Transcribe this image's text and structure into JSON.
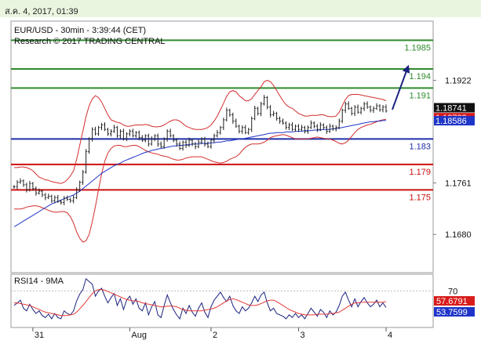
{
  "header": {
    "timestamp": "ส.ค. 4, 2017, 01:39"
  },
  "chart_data": [
    {
      "type": "candlestick",
      "title": "EUR/USD - 30min - 3:39:44 (CET)",
      "subtitle": "Research © 2017 TRADING CENTRAL",
      "ylim": [
        1.162,
        1.2015
      ],
      "y_ticks": [
        {
          "value": 1.1922,
          "label": "1.1922"
        },
        {
          "value": 1.1761,
          "label": "1.1761"
        },
        {
          "value": 1.168,
          "label": "1.1680"
        }
      ],
      "levels": [
        {
          "value": 1.1985,
          "label": "1.1985",
          "color": "#2e8b2e",
          "kind": "resistance"
        },
        {
          "value": 1.194,
          "label": "1.194",
          "color": "#2e8b2e",
          "kind": "resistance"
        },
        {
          "value": 1.191,
          "label": "1.191",
          "color": "#2e8b2e",
          "kind": "resistance"
        },
        {
          "value": 1.183,
          "label": "1.183",
          "color": "#1f2fa8",
          "kind": "pivot"
        },
        {
          "value": 1.179,
          "label": "1.179",
          "color": "#cc1111",
          "kind": "support"
        },
        {
          "value": 1.175,
          "label": "1.175",
          "color": "#cc1111",
          "kind": "support"
        }
      ],
      "price_tags": [
        {
          "value": 1.18741,
          "label": "1.18741",
          "bg": "#111111",
          "fg": "#ffffff"
        },
        {
          "value": 1.18733,
          "label": "1.18733",
          "bg": "#d81b1b",
          "fg": "#ffffff"
        },
        {
          "value": 1.18586,
          "label": "1.18586",
          "bg": "#1f35c8",
          "fg": "#ffffff"
        }
      ],
      "x_labels": [
        {
          "index": 6,
          "label": "31"
        },
        {
          "index": 37,
          "label": "Aug"
        },
        {
          "index": 63,
          "label": "2"
        },
        {
          "index": 91,
          "label": "3"
        },
        {
          "index": 119,
          "label": "4"
        }
      ],
      "close": [
        1.1755,
        1.1762,
        1.1764,
        1.1758,
        1.175,
        1.176,
        1.1752,
        1.1745,
        1.1748,
        1.1742,
        1.1738,
        1.174,
        1.1733,
        1.1738,
        1.1732,
        1.173,
        1.1737,
        1.1735,
        1.1733,
        1.1738,
        1.175,
        1.1762,
        1.1778,
        1.181,
        1.183,
        1.1845,
        1.1838,
        1.1848,
        1.1852,
        1.1845,
        1.1838,
        1.1842,
        1.1848,
        1.1835,
        1.1842,
        1.183,
        1.1838,
        1.1842,
        1.1835,
        1.184,
        1.1832,
        1.1828,
        1.1835,
        1.1822,
        1.183,
        1.1835,
        1.1822,
        1.1818,
        1.183,
        1.1842,
        1.1835,
        1.1828,
        1.1822,
        1.1815,
        1.1825,
        1.182,
        1.1828,
        1.1822,
        1.1818,
        1.1825,
        1.183,
        1.1822,
        1.1818,
        1.1828,
        1.1835,
        1.184,
        1.1848,
        1.186,
        1.1875,
        1.1868,
        1.1858,
        1.185,
        1.1842,
        1.1848,
        1.184,
        1.1845,
        1.1862,
        1.1878,
        1.187,
        1.1885,
        1.1895,
        1.188,
        1.1868,
        1.187,
        1.1862,
        1.1858,
        1.1855,
        1.1848,
        1.1852,
        1.1845,
        1.185,
        1.1845,
        1.1848,
        1.1842,
        1.1848,
        1.1855,
        1.185,
        1.1845,
        1.1852,
        1.1848,
        1.1842,
        1.185,
        1.1846,
        1.1848,
        1.1858,
        1.1875,
        1.1885,
        1.1878,
        1.187,
        1.188,
        1.1872,
        1.1878,
        1.1885,
        1.188,
        1.1875,
        1.1878,
        1.1882,
        1.1876,
        1.188,
        1.1874
      ],
      "upper_band": [
        1.1785,
        1.1785,
        1.1786,
        1.1786,
        1.1785,
        1.1783,
        1.178,
        1.1775,
        1.177,
        1.1768,
        1.1766,
        1.1765,
        1.1763,
        1.1762,
        1.1761,
        1.176,
        1.1762,
        1.1766,
        1.1772,
        1.178,
        1.1798,
        1.182,
        1.1842,
        1.1865,
        1.1882,
        1.1893,
        1.1898,
        1.1895,
        1.1888,
        1.1878,
        1.1868,
        1.186,
        1.1858,
        1.1856,
        1.1855,
        1.1852,
        1.185,
        1.185,
        1.1851,
        1.1852,
        1.1852,
        1.1852,
        1.1853,
        1.1852,
        1.185,
        1.1849,
        1.1849,
        1.185,
        1.1852,
        1.1855,
        1.1858,
        1.186,
        1.186,
        1.1858,
        1.1854,
        1.185,
        1.1848,
        1.1846,
        1.1845,
        1.1845,
        1.1845,
        1.1846,
        1.1848,
        1.1852,
        1.1858,
        1.1866,
        1.1876,
        1.1886,
        1.1897,
        1.1904,
        1.1906,
        1.1904,
        1.1898,
        1.1894,
        1.189,
        1.189,
        1.1893,
        1.19,
        1.1906,
        1.1912,
        1.192,
        1.1922,
        1.192,
        1.1914,
        1.1906,
        1.1898,
        1.189,
        1.1884,
        1.188,
        1.1878,
        1.1874,
        1.187,
        1.1868,
        1.1866,
        1.1866,
        1.1867,
        1.1867,
        1.1867,
        1.1868,
        1.1868,
        1.1866,
        1.1865,
        1.1865,
        1.1866,
        1.1872,
        1.1882,
        1.1892,
        1.1898,
        1.19,
        1.19,
        1.19,
        1.1899,
        1.1898,
        1.1897,
        1.1896,
        1.1895,
        1.1894,
        1.1893,
        1.1892,
        1.189
      ],
      "lower_band": [
        1.172,
        1.172,
        1.172,
        1.1721,
        1.1723,
        1.1724,
        1.1725,
        1.1725,
        1.1724,
        1.1722,
        1.172,
        1.1718,
        1.1716,
        1.1715,
        1.1715,
        1.1716,
        1.1716,
        1.1714,
        1.1708,
        1.1698,
        1.1684,
        1.1674,
        1.1668,
        1.167,
        1.168,
        1.17,
        1.1724,
        1.175,
        1.1775,
        1.1795,
        1.1808,
        1.1815,
        1.1819,
        1.182,
        1.182,
        1.1818,
        1.1818,
        1.1819,
        1.182,
        1.182,
        1.1818,
        1.1815,
        1.1812,
        1.181,
        1.1808,
        1.1807,
        1.1806,
        1.1804,
        1.1803,
        1.1802,
        1.18,
        1.1798,
        1.1797,
        1.1797,
        1.1798,
        1.18,
        1.1801,
        1.1802,
        1.1802,
        1.1802,
        1.1802,
        1.18,
        1.1798,
        1.1796,
        1.1794,
        1.1793,
        1.1792,
        1.1793,
        1.1795,
        1.1798,
        1.18,
        1.1802,
        1.1806,
        1.1812,
        1.1817,
        1.182,
        1.1822,
        1.1822,
        1.1822,
        1.1823,
        1.1825,
        1.1828,
        1.1832,
        1.1834,
        1.1835,
        1.1836,
        1.1837,
        1.1836,
        1.1834,
        1.1832,
        1.183,
        1.183,
        1.183,
        1.183,
        1.183,
        1.1831,
        1.1832,
        1.1833,
        1.1832,
        1.1831,
        1.183,
        1.183,
        1.1828,
        1.1826,
        1.1823,
        1.1822,
        1.1824,
        1.1828,
        1.1834,
        1.184,
        1.1845,
        1.1848,
        1.185,
        1.1852,
        1.1853,
        1.1855,
        1.1857,
        1.1859,
        1.186,
        1.1861
      ],
      "moving_average": [
        1.1692,
        1.1695,
        1.1698,
        1.1701,
        1.1704,
        1.1707,
        1.171,
        1.1713,
        1.1716,
        1.1719,
        1.1722,
        1.1725,
        1.1728,
        1.173,
        1.1732,
        1.1734,
        1.1736,
        1.1738,
        1.174,
        1.1742,
        1.1745,
        1.1748,
        1.1752,
        1.1756,
        1.176,
        1.1764,
        1.1768,
        1.1772,
        1.1776,
        1.1779,
        1.1782,
        1.1785,
        1.1788,
        1.179,
        1.1792,
        1.1795,
        1.1797,
        1.1799,
        1.1801,
        1.1803,
        1.1805,
        1.1807,
        1.1809,
        1.181,
        1.1812,
        1.1813,
        1.1814,
        1.1815,
        1.1816,
        1.1817,
        1.1818,
        1.1819,
        1.1819,
        1.182,
        1.182,
        1.1821,
        1.1821,
        1.1822,
        1.1822,
        1.1822,
        1.1823,
        1.1823,
        1.1823,
        1.1824,
        1.1824,
        1.1825,
        1.1825,
        1.1826,
        1.1827,
        1.1827,
        1.1828,
        1.1829,
        1.183,
        1.183,
        1.1831,
        1.1832,
        1.1833,
        1.1834,
        1.1835,
        1.1836,
        1.1837,
        1.1838,
        1.1839,
        1.1839,
        1.184,
        1.184,
        1.184,
        1.1841,
        1.1841,
        1.1841,
        1.1842,
        1.1842,
        1.1842,
        1.1843,
        1.1843,
        1.1843,
        1.1844,
        1.1844,
        1.1844,
        1.1845,
        1.1845,
        1.1845,
        1.1846,
        1.1846,
        1.1847,
        1.1848,
        1.1849,
        1.185,
        1.1851,
        1.1852,
        1.1853,
        1.1854,
        1.1855,
        1.1856,
        1.1857,
        1.1857,
        1.1858,
        1.1858,
        1.1859,
        1.1859
      ],
      "projection": {
        "from_index": 121,
        "from_value": 1.1876,
        "to_index": 126,
        "to_value": 1.1943
      }
    },
    {
      "type": "line",
      "title": "RSI14 - 9MA",
      "ylim": [
        15,
        95
      ],
      "y_ticks": [
        {
          "value": 70,
          "label": "70"
        }
      ],
      "series": [
        {
          "name": "RSI14",
          "color": "#1a237e",
          "values": [
            48,
            52,
            56,
            44,
            40,
            50,
            42,
            36,
            40,
            33,
            30,
            35,
            28,
            36,
            30,
            28,
            40,
            36,
            34,
            40,
            55,
            65,
            72,
            88,
            84,
            80,
            62,
            70,
            74,
            62,
            52,
            60,
            66,
            48,
            58,
            42,
            56,
            62,
            50,
            58,
            44,
            40,
            52,
            34,
            46,
            54,
            34,
            30,
            48,
            64,
            52,
            42,
            34,
            28,
            44,
            36,
            48,
            38,
            32,
            44,
            52,
            38,
            30,
            46,
            56,
            62,
            68,
            60,
            54,
            62,
            48,
            40,
            36,
            46,
            40,
            44,
            52,
            62,
            54,
            64,
            68,
            52,
            40,
            44,
            36,
            34,
            32,
            28,
            34,
            30,
            36,
            30,
            34,
            28,
            36,
            44,
            38,
            32,
            42,
            38,
            30,
            40,
            34,
            38,
            48,
            62,
            68,
            56,
            46,
            58,
            46,
            54,
            60,
            52,
            46,
            50,
            56,
            46,
            52,
            45
          ]
        },
        {
          "name": "9MA",
          "color": "#e53935",
          "values": [
            52,
            52,
            51,
            50,
            49,
            48,
            46,
            44,
            42,
            40,
            38,
            37,
            36,
            35,
            34,
            33,
            33,
            33,
            34,
            35,
            38,
            43,
            48,
            54,
            60,
            66,
            70,
            72,
            72,
            71,
            69,
            67,
            65,
            63,
            61,
            59,
            57,
            56,
            55,
            55,
            54,
            52,
            51,
            50,
            49,
            48,
            47,
            46,
            46,
            47,
            47,
            47,
            46,
            44,
            42,
            41,
            40,
            40,
            40,
            40,
            40,
            41,
            42,
            43,
            44,
            46,
            49,
            52,
            55,
            57,
            58,
            57,
            55,
            53,
            51,
            49,
            48,
            48,
            49,
            51,
            53,
            55,
            56,
            56,
            54,
            51,
            48,
            45,
            42,
            40,
            38,
            36,
            35,
            34,
            34,
            34,
            34,
            35,
            35,
            35,
            35,
            36,
            36,
            37,
            38,
            41,
            44,
            47,
            50,
            52,
            52,
            53,
            53,
            53,
            53,
            53,
            53,
            53,
            53,
            54
          ]
        }
      ],
      "value_tags": [
        {
          "value": 57.6791,
          "label": "57.6791",
          "bg": "#d81b1b",
          "fg": "#ffffff"
        },
        {
          "value": 53.7599,
          "label": "53.7599",
          "bg": "#1f35c8",
          "fg": "#ffffff"
        }
      ]
    }
  ]
}
